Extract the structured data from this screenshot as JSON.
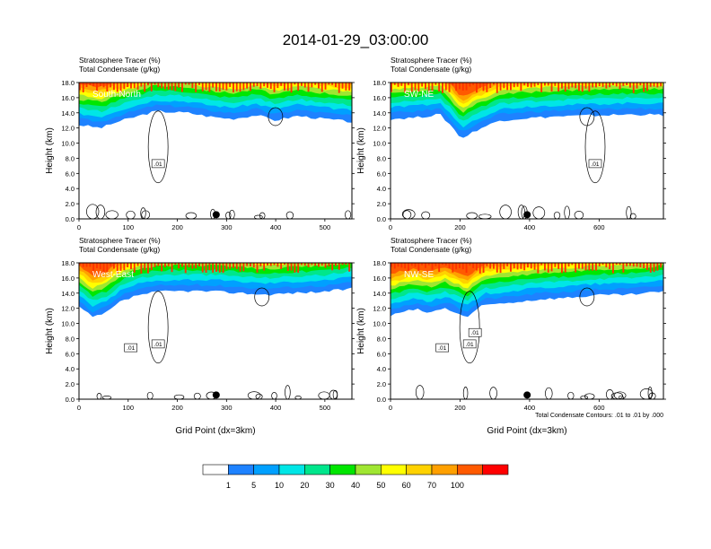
{
  "chart_data": {
    "type": "heatmap",
    "title": "2014-01-29_03:00:00",
    "field_label": "Stratosphere Tracer",
    "field_units": "(%)",
    "contour_label": "Total Condensate",
    "contour_units": "(g/kg)",
    "ylabel": "Height (km)",
    "xlabel": "Grid Point (dx=3km)",
    "ylim": [
      0,
      18
    ],
    "yticks": [
      "0.0",
      "2.0",
      "4.0",
      "6.0",
      "8.0",
      "10.0",
      "12.0",
      "14.0",
      "16.0",
      "18.0"
    ],
    "contour_note": "Total Condensate Contours: .01 to .01 by .000",
    "colorbar": {
      "levels": [
        "1",
        "5",
        "10",
        "20",
        "30",
        "40",
        "50",
        "60",
        "70",
        "100"
      ],
      "colors": [
        "#ffffff",
        "#1e82ff",
        "#00a0ff",
        "#00e6e6",
        "#00e68c",
        "#00e600",
        "#a0e632",
        "#ffff00",
        "#ffd200",
        "#ffa000",
        "#ff5a00",
        "#ff0000"
      ]
    },
    "panels": [
      {
        "name": "South-North",
        "xlim": [
          0,
          555
        ],
        "xticks": [
          0,
          100,
          200,
          300,
          400,
          500
        ],
        "marker_x": 279,
        "contour_labels": [
          ".01"
        ]
      },
      {
        "name": "SW-NE",
        "xlim": [
          0,
          785
        ],
        "xticks": [
          0,
          200,
          400,
          600
        ],
        "marker_x": 393,
        "contour_labels": [
          ".01"
        ]
      },
      {
        "name": "West-East",
        "xlim": [
          0,
          555
        ],
        "xticks": [
          0,
          100,
          200,
          300,
          400,
          500
        ],
        "marker_x": 279,
        "contour_labels": [
          ".01",
          ".01"
        ]
      },
      {
        "name": "NW-SE",
        "xlim": [
          0,
          785
        ],
        "xticks": [
          0,
          200,
          400,
          600
        ],
        "marker_x": 393,
        "contour_labels": [
          ".01",
          ".01",
          ".01"
        ]
      }
    ]
  }
}
